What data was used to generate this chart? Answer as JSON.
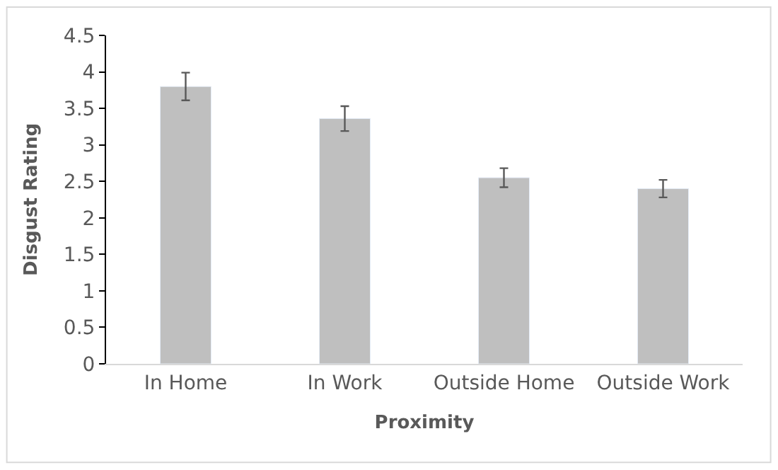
{
  "chart_data": {
    "type": "bar",
    "xlabel": "Proximity",
    "ylabel": "Disgust Rating",
    "categories": [
      "In Home",
      "In Work",
      "Outside Home",
      "Outside Work"
    ],
    "values": [
      3.8,
      3.36,
      2.55,
      2.4
    ],
    "errors": [
      0.19,
      0.17,
      0.13,
      0.12
    ],
    "color": "#bfbfbf",
    "ylim": [
      0,
      4.5
    ],
    "yticks": [
      0,
      0.5,
      1,
      1.5,
      2,
      2.5,
      3,
      3.5,
      4,
      4.5
    ],
    "legend": false
  }
}
